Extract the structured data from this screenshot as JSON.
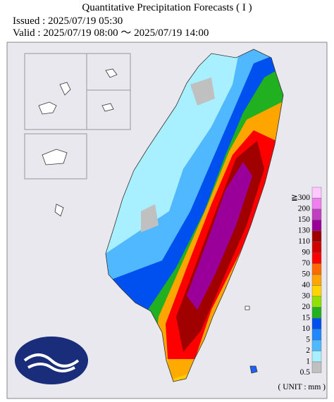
{
  "header": {
    "title": "Quantitative Precipitation Forecasts ( I )",
    "issued": "Issued : 2025/07/19 05:30",
    "valid": "Valid : 2025/07/19 08:00 ～ 2025/07/19 14:00"
  },
  "legend": {
    "items": [
      {
        "label": "≧300",
        "color": "#ffc8ff"
      },
      {
        "label": "200",
        "color": "#f080f0"
      },
      {
        "label": "150",
        "color": "#c040c0"
      },
      {
        "label": "130",
        "color": "#9a0099"
      },
      {
        "label": "110",
        "color": "#a00000"
      },
      {
        "label": "90",
        "color": "#d00000"
      },
      {
        "label": "70",
        "color": "#ff0000"
      },
      {
        "label": "50",
        "color": "#ff6a00"
      },
      {
        "label": "40",
        "color": "#ffa500"
      },
      {
        "label": "30",
        "color": "#ffd400"
      },
      {
        "label": "20",
        "color": "#90e000"
      },
      {
        "label": "15",
        "color": "#20b020"
      },
      {
        "label": "10",
        "color": "#0050f0"
      },
      {
        "label": "5",
        "color": "#2088ff"
      },
      {
        "label": "2",
        "color": "#50b8ff"
      },
      {
        "label": "1",
        "color": "#a8f0ff"
      },
      {
        "label": "0.5",
        "color": "#c0c0c0"
      }
    ],
    "unit": "( UNIT : mm )"
  }
}
